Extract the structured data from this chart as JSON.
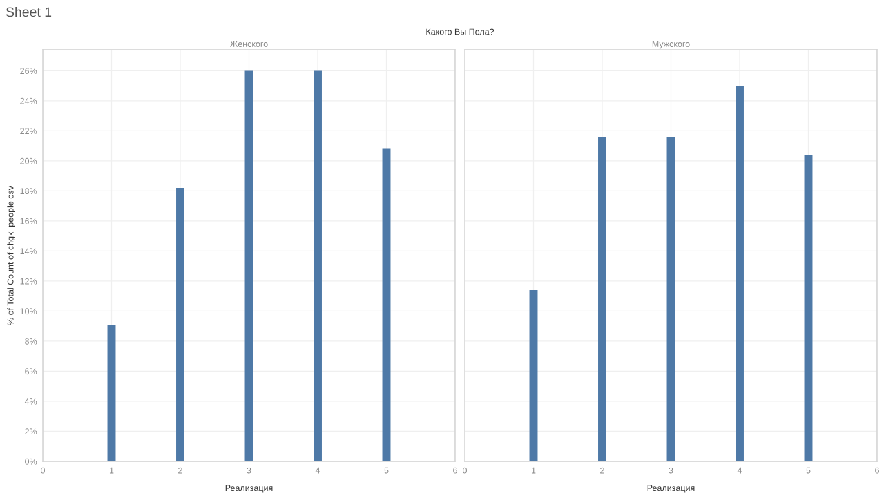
{
  "chart_data": [
    {
      "type": "bar",
      "title": "Женского",
      "xlabel": "Реализация",
      "ylabel": "% of Total Count of chgk_people.csv",
      "annotations": [
        "Sheet 1",
        "Какого Вы Пола?"
      ],
      "x": [
        1,
        2,
        3,
        4,
        5
      ],
      "values": [
        9.1,
        18.2,
        26.0,
        26.0,
        20.8
      ],
      "color": "#4e79a7",
      "xlim": [
        0,
        6
      ],
      "xticks": [
        0,
        1,
        2,
        3,
        4,
        5,
        6
      ],
      "ylim": [
        0,
        27.4
      ],
      "yticks": [
        {
          "value": 0,
          "label": "0%"
        },
        {
          "value": 2,
          "label": "2%"
        },
        {
          "value": 4,
          "label": "4%"
        },
        {
          "value": 6,
          "label": "6%"
        },
        {
          "value": 8,
          "label": "8%"
        },
        {
          "value": 10,
          "label": "10%"
        },
        {
          "value": 12,
          "label": "12%"
        },
        {
          "value": 14,
          "label": "14%"
        },
        {
          "value": 16,
          "label": "16%"
        },
        {
          "value": 18,
          "label": "18%"
        },
        {
          "value": 20,
          "label": "20%"
        },
        {
          "value": 22,
          "label": "22%"
        },
        {
          "value": 24,
          "label": "24%"
        },
        {
          "value": 26,
          "label": "26%"
        }
      ],
      "grid": true
    },
    {
      "type": "bar",
      "title": "Мужского",
      "xlabel": "Реализация",
      "x": [
        1,
        2,
        3,
        4,
        5
      ],
      "values": [
        11.4,
        21.6,
        21.6,
        25.0,
        20.4
      ],
      "color": "#4e79a7",
      "xlim": [
        0,
        6
      ],
      "xticks": [
        0,
        1,
        2,
        3,
        4,
        5,
        6
      ],
      "ylim": [
        0,
        27.4
      ],
      "yticks": [
        0,
        2,
        4,
        6,
        8,
        10,
        12,
        14,
        16,
        18,
        20,
        22,
        24,
        26
      ],
      "grid": true,
      "tick_labels": "x"
    }
  ]
}
